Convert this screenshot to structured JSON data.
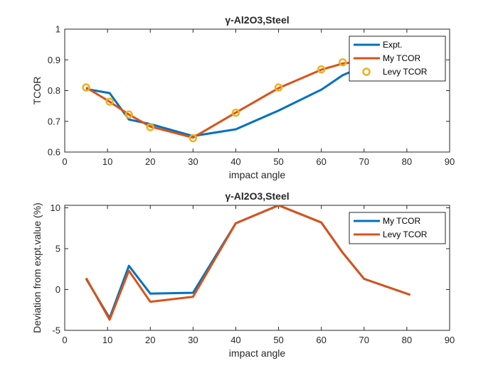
{
  "chart_data": [
    {
      "type": "line",
      "title": "γ-Al2O3,Steel",
      "xlabel": "impact angle",
      "ylabel": "TCOR",
      "xlim": [
        0,
        90
      ],
      "ylim": [
        0.6,
        1.0
      ],
      "xticks": [
        0,
        10,
        20,
        30,
        40,
        50,
        60,
        70,
        80,
        90
      ],
      "xtick_labels": [
        "0",
        "10",
        "20",
        "30",
        "40",
        "50",
        "60",
        "70",
        "80",
        "90"
      ],
      "yticks": [
        0.6,
        0.7,
        0.8,
        0.9,
        1.0
      ],
      "ytick_labels": [
        "0.6",
        "0.7",
        "0.8",
        "0.9",
        "1"
      ],
      "legend_position": "top-right",
      "series": [
        {
          "name": "Expt.",
          "style": "line",
          "color": "#0072BD",
          "x": [
            5,
            10.5,
            15,
            20,
            30,
            40,
            50,
            60,
            65,
            70,
            80.8
          ],
          "y": [
            0.805,
            0.792,
            0.706,
            0.691,
            0.652,
            0.674,
            0.735,
            0.803,
            0.85,
            0.88,
            0.925
          ]
        },
        {
          "name": "My TCOR",
          "style": "line",
          "color": "#D95319",
          "x": [
            5,
            10.5,
            15,
            20,
            30,
            40,
            50,
            60,
            65,
            70,
            80.8
          ],
          "y": [
            0.81,
            0.764,
            0.722,
            0.683,
            0.647,
            0.728,
            0.808,
            0.868,
            0.888,
            0.895,
            0.915
          ]
        },
        {
          "name": "Levy TCOR",
          "style": "markers",
          "color": "#EDB120",
          "x": [
            5,
            10.5,
            15,
            20,
            30,
            40,
            50,
            60,
            65
          ],
          "y": [
            0.81,
            0.764,
            0.722,
            0.681,
            0.645,
            0.728,
            0.81,
            0.869,
            0.892
          ]
        }
      ]
    },
    {
      "type": "line",
      "title": "γ-Al2O3,Steel",
      "xlabel": "impact angle",
      "ylabel": "Deviation from expt.value (%)",
      "xlim": [
        0,
        90
      ],
      "ylim": [
        -5,
        10.3
      ],
      "xticks": [
        0,
        10,
        20,
        30,
        40,
        50,
        60,
        70,
        80,
        90
      ],
      "xtick_labels": [
        "0",
        "10",
        "20",
        "30",
        "40",
        "50",
        "60",
        "70",
        "80",
        "90"
      ],
      "yticks": [
        -5,
        0,
        5,
        10
      ],
      "ytick_labels": [
        "-5",
        "0",
        "5",
        "10"
      ],
      "legend_position": "top-right",
      "series": [
        {
          "name": "My TCOR",
          "style": "line",
          "color": "#0072BD",
          "x": [
            5,
            10.5,
            15,
            20,
            30,
            40,
            50,
            60,
            65,
            70,
            80.8
          ],
          "y": [
            1.3,
            -3.5,
            2.9,
            -0.5,
            -0.4,
            8.1,
            10.3,
            8.2,
            4.5,
            1.3,
            -0.65
          ]
        },
        {
          "name": "Levy TCOR",
          "style": "line",
          "color": "#D95319",
          "x": [
            5,
            10.5,
            15,
            20,
            30,
            40,
            50,
            60,
            65,
            70,
            80.8
          ],
          "y": [
            1.4,
            -3.7,
            2.3,
            -1.5,
            -0.9,
            8.1,
            10.3,
            8.2,
            4.5,
            1.3,
            -0.65
          ]
        }
      ]
    }
  ]
}
